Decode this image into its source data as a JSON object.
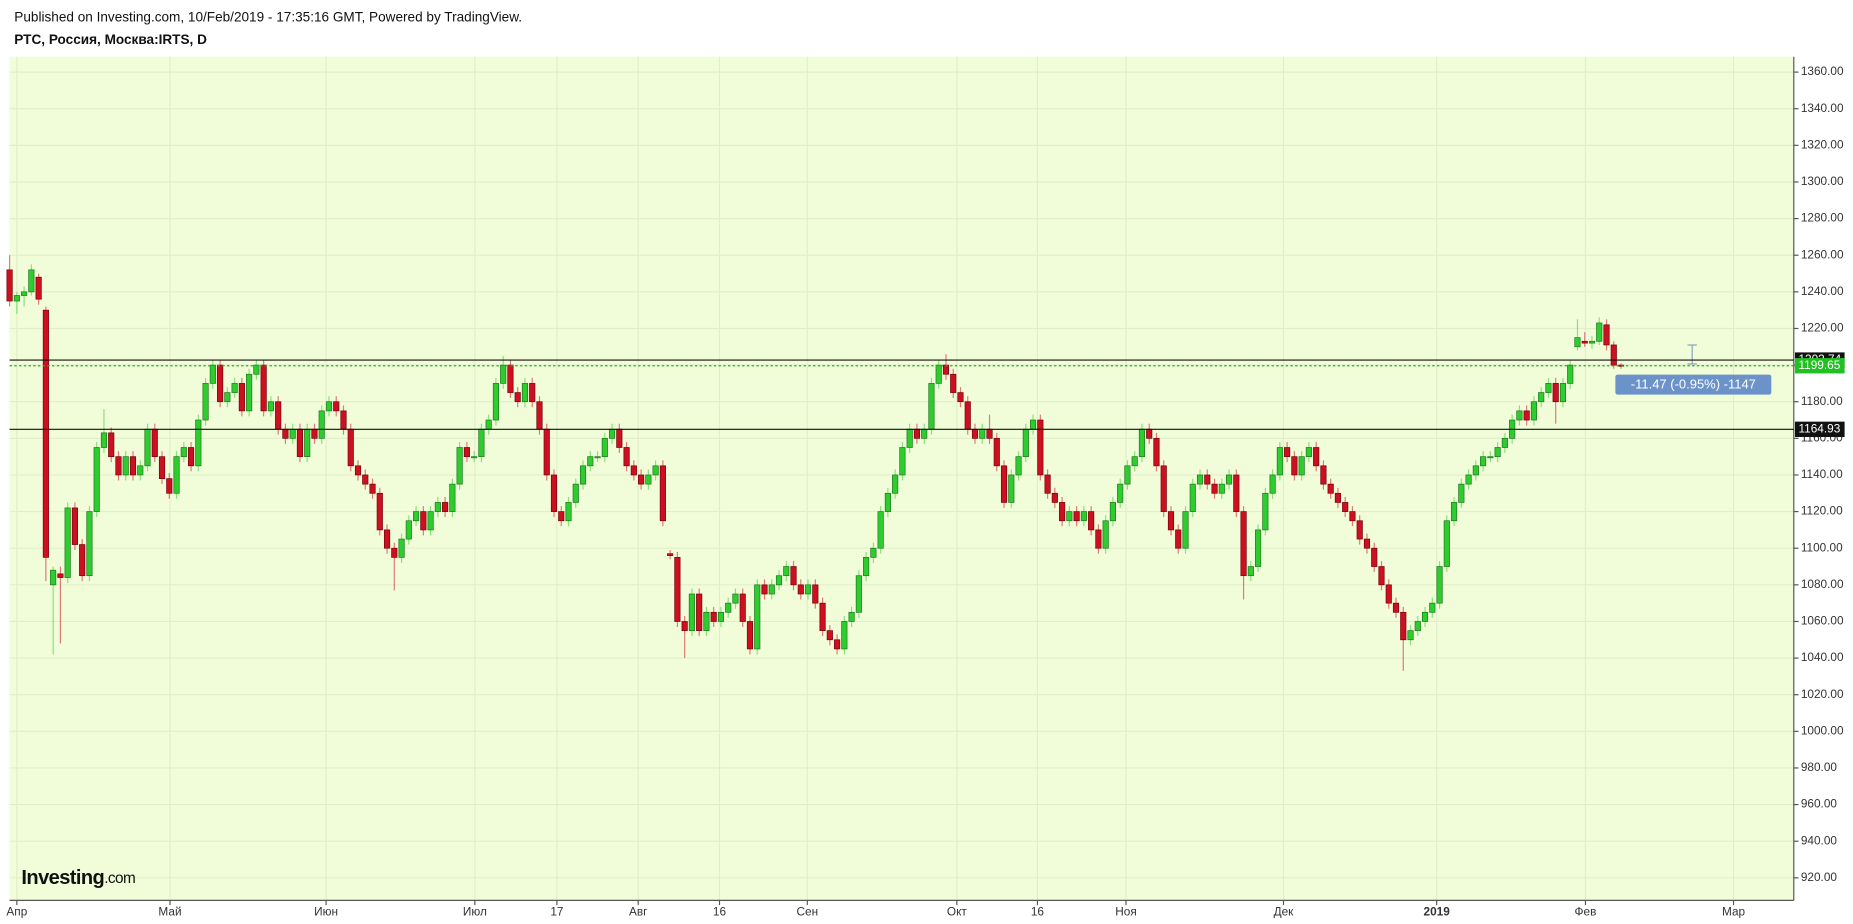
{
  "chart_data": {
    "type": "candlestick",
    "header": "Published on Investing.com, 10/Feb/2019 - 17:35:16 GMT, Powered by TradingView.",
    "title": "РТС, Россия, Москва:IRTS, D",
    "logo": {
      "name": "Investing",
      "suffix": ".com"
    },
    "annotation": "-11.47 (-0.95%) -1147",
    "up_color": "#2ecc2e",
    "down_color": "#cc1020",
    "levels": [
      1202.74,
      1164.93
    ],
    "last_price": 1199.65,
    "grid": true,
    "xlim": [
      0,
      245.8
    ],
    "xticks": [
      {
        "value": 1.0,
        "label": "Апр"
      },
      {
        "value": 22.1,
        "label": "Май"
      },
      {
        "value": 43.6,
        "label": "Июн"
      },
      {
        "value": 64.1,
        "label": "Июл"
      },
      {
        "value": 75.4,
        "label": "17"
      },
      {
        "value": 86.6,
        "label": "Авг"
      },
      {
        "value": 97.8,
        "label": "16"
      },
      {
        "value": 109.9,
        "label": "Сен"
      },
      {
        "value": 130.5,
        "label": "Окт"
      },
      {
        "value": 141.6,
        "label": "16"
      },
      {
        "value": 153.8,
        "label": "Ноя"
      },
      {
        "value": 175.5,
        "label": "Дек"
      },
      {
        "value": 196.6,
        "label": "2019"
      },
      {
        "value": 217.1,
        "label": "Фев"
      },
      {
        "value": 237.5,
        "label": "Мар"
      }
    ],
    "ylim": [
      907.7,
      1368.4
    ],
    "yticks": [
      {
        "value": 920,
        "label": "920.00"
      },
      {
        "value": 940,
        "label": "940.00"
      },
      {
        "value": 960,
        "label": "960.00"
      },
      {
        "value": 980,
        "label": "980.00"
      },
      {
        "value": 1000,
        "label": "1000.00"
      },
      {
        "value": 1020,
        "label": "1020.00"
      },
      {
        "value": 1040,
        "label": "1040.00"
      },
      {
        "value": 1060,
        "label": "1060.00"
      },
      {
        "value": 1080,
        "label": "1080.00"
      },
      {
        "value": 1100,
        "label": "1100.00"
      },
      {
        "value": 1120,
        "label": "1120.00"
      },
      {
        "value": 1140,
        "label": "1140.00"
      },
      {
        "value": 1160,
        "label": "1160.00"
      },
      {
        "value": 1180,
        "label": "1180.00"
      },
      {
        "value": 1200,
        "label": "1200.00"
      },
      {
        "value": 1220,
        "label": "1220.00"
      },
      {
        "value": 1240,
        "label": "1240.00"
      },
      {
        "value": 1260,
        "label": "1260.00"
      },
      {
        "value": 1280,
        "label": "1280.00"
      },
      {
        "value": 1300,
        "label": "1300.00"
      },
      {
        "value": 1320,
        "label": "1320.00"
      },
      {
        "value": 1340,
        "label": "1340.00"
      },
      {
        "value": 1360,
        "label": "1360.00"
      }
    ],
    "candles": [
      [
        1252,
        1260,
        1232,
        1235
      ],
      [
        1235,
        1240,
        1228,
        1238
      ],
      [
        1238,
        1243,
        1232,
        1240
      ],
      [
        1240,
        1255,
        1238,
        1252
      ],
      [
        1248,
        1250,
        1233,
        1236
      ],
      [
        1230,
        1232,
        1082,
        1095
      ],
      [
        1080,
        1090,
        1042,
        1088
      ],
      [
        1086,
        1090,
        1048,
        1084
      ],
      [
        1084,
        1125,
        1081,
        1122
      ],
      [
        1122,
        1125,
        1099,
        1102
      ],
      [
        1102,
        1105,
        1082,
        1085
      ],
      [
        1085,
        1123,
        1082,
        1120
      ],
      [
        1120,
        1158,
        1117,
        1155
      ],
      [
        1155,
        1176,
        1152,
        1163
      ],
      [
        1163,
        1166,
        1147,
        1150
      ],
      [
        1150,
        1153,
        1137,
        1140
      ],
      [
        1140,
        1153,
        1137,
        1150
      ],
      [
        1150,
        1153,
        1137,
        1140
      ],
      [
        1140,
        1148,
        1137,
        1145
      ],
      [
        1145,
        1168,
        1142,
        1165
      ],
      [
        1165,
        1168,
        1147,
        1150
      ],
      [
        1150,
        1153,
        1135,
        1138
      ],
      [
        1138,
        1141,
        1127,
        1130
      ],
      [
        1130,
        1153,
        1127,
        1150
      ],
      [
        1150,
        1158,
        1147,
        1155
      ],
      [
        1155,
        1158,
        1142,
        1145
      ],
      [
        1145,
        1173,
        1142,
        1170
      ],
      [
        1170,
        1193,
        1167,
        1190
      ],
      [
        1190,
        1203,
        1187,
        1200
      ],
      [
        1200,
        1203,
        1177,
        1180
      ],
      [
        1180,
        1188,
        1177,
        1185
      ],
      [
        1185,
        1193,
        1182,
        1190
      ],
      [
        1190,
        1193,
        1172,
        1175
      ],
      [
        1175,
        1198,
        1172,
        1195
      ],
      [
        1195,
        1203,
        1192,
        1200
      ],
      [
        1200,
        1203,
        1172,
        1175
      ],
      [
        1175,
        1183,
        1172,
        1180
      ],
      [
        1180,
        1183,
        1162,
        1165
      ],
      [
        1165,
        1168,
        1157,
        1160
      ],
      [
        1160,
        1168,
        1157,
        1165
      ],
      [
        1165,
        1168,
        1147,
        1150
      ],
      [
        1150,
        1168,
        1147,
        1165
      ],
      [
        1165,
        1168,
        1157,
        1160
      ],
      [
        1160,
        1178,
        1157,
        1175
      ],
      [
        1175,
        1183,
        1172,
        1180
      ],
      [
        1180,
        1183,
        1172,
        1175
      ],
      [
        1175,
        1178,
        1162,
        1165
      ],
      [
        1165,
        1168,
        1142,
        1145
      ],
      [
        1145,
        1148,
        1137,
        1140
      ],
      [
        1140,
        1143,
        1132,
        1135
      ],
      [
        1135,
        1138,
        1127,
        1130
      ],
      [
        1130,
        1133,
        1107,
        1110
      ],
      [
        1110,
        1113,
        1097,
        1100
      ],
      [
        1100,
        1103,
        1077,
        1095
      ],
      [
        1095,
        1108,
        1092,
        1105
      ],
      [
        1105,
        1118,
        1102,
        1115
      ],
      [
        1115,
        1123,
        1112,
        1120
      ],
      [
        1120,
        1123,
        1107,
        1110
      ],
      [
        1110,
        1123,
        1107,
        1120
      ],
      [
        1120,
        1128,
        1117,
        1125
      ],
      [
        1125,
        1128,
        1117,
        1120
      ],
      [
        1120,
        1138,
        1117,
        1135
      ],
      [
        1135,
        1158,
        1132,
        1155
      ],
      [
        1155,
        1158,
        1147,
        1150
      ],
      [
        1150,
        1153,
        1147,
        1150
      ],
      [
        1150,
        1168,
        1147,
        1165
      ],
      [
        1165,
        1173,
        1162,
        1170
      ],
      [
        1170,
        1193,
        1167,
        1190
      ],
      [
        1190,
        1205,
        1187,
        1200
      ],
      [
        1200,
        1203,
        1182,
        1185
      ],
      [
        1185,
        1188,
        1177,
        1180
      ],
      [
        1180,
        1193,
        1177,
        1190
      ],
      [
        1190,
        1193,
        1177,
        1180
      ],
      [
        1180,
        1183,
        1162,
        1165
      ],
      [
        1165,
        1168,
        1137,
        1140
      ],
      [
        1140,
        1143,
        1117,
        1120
      ],
      [
        1120,
        1123,
        1112,
        1115
      ],
      [
        1115,
        1128,
        1112,
        1125
      ],
      [
        1125,
        1138,
        1122,
        1135
      ],
      [
        1135,
        1148,
        1132,
        1145
      ],
      [
        1145,
        1153,
        1142,
        1150
      ],
      [
        1150,
        1153,
        1147,
        1150
      ],
      [
        1150,
        1163,
        1147,
        1160
      ],
      [
        1160,
        1168,
        1157,
        1165
      ],
      [
        1165,
        1168,
        1152,
        1155
      ],
      [
        1155,
        1158,
        1142,
        1145
      ],
      [
        1145,
        1148,
        1137,
        1140
      ],
      [
        1140,
        1143,
        1132,
        1135
      ],
      [
        1135,
        1143,
        1132,
        1140
      ],
      [
        1140,
        1148,
        1137,
        1145
      ],
      [
        1145,
        1148,
        1112,
        1115
      ],
      [
        1097,
        1099,
        1094,
        1096
      ],
      [
        1095,
        1098,
        1057,
        1060
      ],
      [
        1060,
        1063,
        1040,
        1055
      ],
      [
        1055,
        1078,
        1052,
        1075
      ],
      [
        1075,
        1078,
        1052,
        1055
      ],
      [
        1055,
        1068,
        1052,
        1065
      ],
      [
        1065,
        1068,
        1057,
        1060
      ],
      [
        1060,
        1068,
        1057,
        1065
      ],
      [
        1065,
        1073,
        1062,
        1070
      ],
      [
        1070,
        1078,
        1067,
        1075
      ],
      [
        1075,
        1078,
        1057,
        1060
      ],
      [
        1060,
        1063,
        1042,
        1045
      ],
      [
        1045,
        1083,
        1042,
        1080
      ],
      [
        1080,
        1083,
        1072,
        1075
      ],
      [
        1075,
        1083,
        1072,
        1080
      ],
      [
        1080,
        1088,
        1077,
        1085
      ],
      [
        1085,
        1093,
        1082,
        1090
      ],
      [
        1090,
        1093,
        1077,
        1080
      ],
      [
        1080,
        1083,
        1072,
        1075
      ],
      [
        1075,
        1083,
        1072,
        1080
      ],
      [
        1080,
        1083,
        1067,
        1070
      ],
      [
        1070,
        1073,
        1052,
        1055
      ],
      [
        1055,
        1058,
        1047,
        1050
      ],
      [
        1050,
        1053,
        1042,
        1045
      ],
      [
        1045,
        1063,
        1042,
        1060
      ],
      [
        1060,
        1068,
        1057,
        1065
      ],
      [
        1065,
        1088,
        1062,
        1085
      ],
      [
        1085,
        1098,
        1082,
        1095
      ],
      [
        1095,
        1103,
        1092,
        1100
      ],
      [
        1100,
        1123,
        1097,
        1120
      ],
      [
        1120,
        1133,
        1117,
        1130
      ],
      [
        1130,
        1143,
        1127,
        1140
      ],
      [
        1140,
        1158,
        1137,
        1155
      ],
      [
        1155,
        1168,
        1152,
        1165
      ],
      [
        1165,
        1168,
        1157,
        1160
      ],
      [
        1160,
        1168,
        1157,
        1165
      ],
      [
        1165,
        1193,
        1162,
        1190
      ],
      [
        1190,
        1203,
        1187,
        1200
      ],
      [
        1200,
        1206,
        1192,
        1195
      ],
      [
        1195,
        1198,
        1182,
        1185
      ],
      [
        1185,
        1188,
        1177,
        1180
      ],
      [
        1180,
        1183,
        1162,
        1165
      ],
      [
        1165,
        1168,
        1157,
        1160
      ],
      [
        1160,
        1168,
        1157,
        1165
      ],
      [
        1165,
        1173,
        1157,
        1160
      ],
      [
        1160,
        1163,
        1142,
        1145
      ],
      [
        1145,
        1148,
        1122,
        1125
      ],
      [
        1125,
        1143,
        1122,
        1140
      ],
      [
        1140,
        1153,
        1137,
        1150
      ],
      [
        1150,
        1168,
        1147,
        1165
      ],
      [
        1165,
        1173,
        1162,
        1170
      ],
      [
        1170,
        1173,
        1137,
        1140
      ],
      [
        1140,
        1143,
        1127,
        1130
      ],
      [
        1130,
        1133,
        1122,
        1125
      ],
      [
        1125,
        1128,
        1112,
        1115
      ],
      [
        1115,
        1123,
        1112,
        1120
      ],
      [
        1120,
        1123,
        1112,
        1115
      ],
      [
        1115,
        1123,
        1112,
        1120
      ],
      [
        1120,
        1123,
        1107,
        1110
      ],
      [
        1110,
        1113,
        1097,
        1100
      ],
      [
        1100,
        1118,
        1097,
        1115
      ],
      [
        1115,
        1128,
        1112,
        1125
      ],
      [
        1125,
        1138,
        1122,
        1135
      ],
      [
        1135,
        1148,
        1132,
        1145
      ],
      [
        1145,
        1153,
        1142,
        1150
      ],
      [
        1150,
        1168,
        1147,
        1165
      ],
      [
        1165,
        1168,
        1157,
        1160
      ],
      [
        1160,
        1163,
        1142,
        1145
      ],
      [
        1145,
        1148,
        1117,
        1120
      ],
      [
        1120,
        1123,
        1107,
        1110
      ],
      [
        1110,
        1113,
        1097,
        1100
      ],
      [
        1100,
        1123,
        1097,
        1120
      ],
      [
        1120,
        1138,
        1117,
        1135
      ],
      [
        1135,
        1143,
        1132,
        1140
      ],
      [
        1140,
        1143,
        1132,
        1135
      ],
      [
        1135,
        1138,
        1127,
        1130
      ],
      [
        1130,
        1138,
        1127,
        1135
      ],
      [
        1135,
        1143,
        1132,
        1140
      ],
      [
        1140,
        1143,
        1117,
        1120
      ],
      [
        1120,
        1123,
        1072,
        1085
      ],
      [
        1085,
        1093,
        1082,
        1090
      ],
      [
        1090,
        1113,
        1087,
        1110
      ],
      [
        1110,
        1133,
        1107,
        1130
      ],
      [
        1130,
        1143,
        1127,
        1140
      ],
      [
        1140,
        1158,
        1137,
        1155
      ],
      [
        1155,
        1158,
        1147,
        1150
      ],
      [
        1150,
        1153,
        1137,
        1140
      ],
      [
        1140,
        1153,
        1137,
        1150
      ],
      [
        1150,
        1158,
        1147,
        1155
      ],
      [
        1155,
        1158,
        1142,
        1145
      ],
      [
        1145,
        1148,
        1132,
        1135
      ],
      [
        1135,
        1138,
        1127,
        1130
      ],
      [
        1130,
        1133,
        1122,
        1125
      ],
      [
        1125,
        1128,
        1117,
        1120
      ],
      [
        1120,
        1123,
        1112,
        1115
      ],
      [
        1115,
        1118,
        1102,
        1105
      ],
      [
        1105,
        1108,
        1097,
        1100
      ],
      [
        1100,
        1103,
        1087,
        1090
      ],
      [
        1090,
        1093,
        1077,
        1080
      ],
      [
        1080,
        1083,
        1067,
        1070
      ],
      [
        1070,
        1073,
        1062,
        1065
      ],
      [
        1065,
        1068,
        1033,
        1050
      ],
      [
        1050,
        1058,
        1047,
        1055
      ],
      [
        1055,
        1063,
        1052,
        1060
      ],
      [
        1060,
        1068,
        1057,
        1065
      ],
      [
        1065,
        1073,
        1062,
        1070
      ],
      [
        1070,
        1093,
        1067,
        1090
      ],
      [
        1090,
        1118,
        1087,
        1115
      ],
      [
        1115,
        1128,
        1112,
        1125
      ],
      [
        1125,
        1138,
        1122,
        1135
      ],
      [
        1135,
        1143,
        1132,
        1140
      ],
      [
        1140,
        1148,
        1137,
        1145
      ],
      [
        1145,
        1153,
        1142,
        1150
      ],
      [
        1150,
        1153,
        1147,
        1150
      ],
      [
        1150,
        1158,
        1147,
        1155
      ],
      [
        1155,
        1163,
        1152,
        1160
      ],
      [
        1160,
        1173,
        1157,
        1170
      ],
      [
        1170,
        1178,
        1167,
        1175
      ],
      [
        1175,
        1178,
        1167,
        1170
      ],
      [
        1170,
        1183,
        1167,
        1180
      ],
      [
        1180,
        1188,
        1177,
        1185
      ],
      [
        1185,
        1193,
        1182,
        1190
      ],
      [
        1190,
        1193,
        1168,
        1180
      ],
      [
        1180,
        1193,
        1177,
        1190
      ],
      [
        1190,
        1203,
        1187,
        1200
      ],
      [
        1210,
        1225,
        1208,
        1215
      ],
      [
        1213,
        1218,
        1210,
        1212
      ],
      [
        1212,
        1216,
        1209,
        1213
      ],
      [
        1213,
        1226,
        1211,
        1223
      ],
      [
        1222,
        1225,
        1208,
        1211
      ],
      [
        1211,
        1213,
        1198,
        1200
      ],
      [
        1200,
        1201,
        1198,
        1199.65
      ]
    ]
  }
}
